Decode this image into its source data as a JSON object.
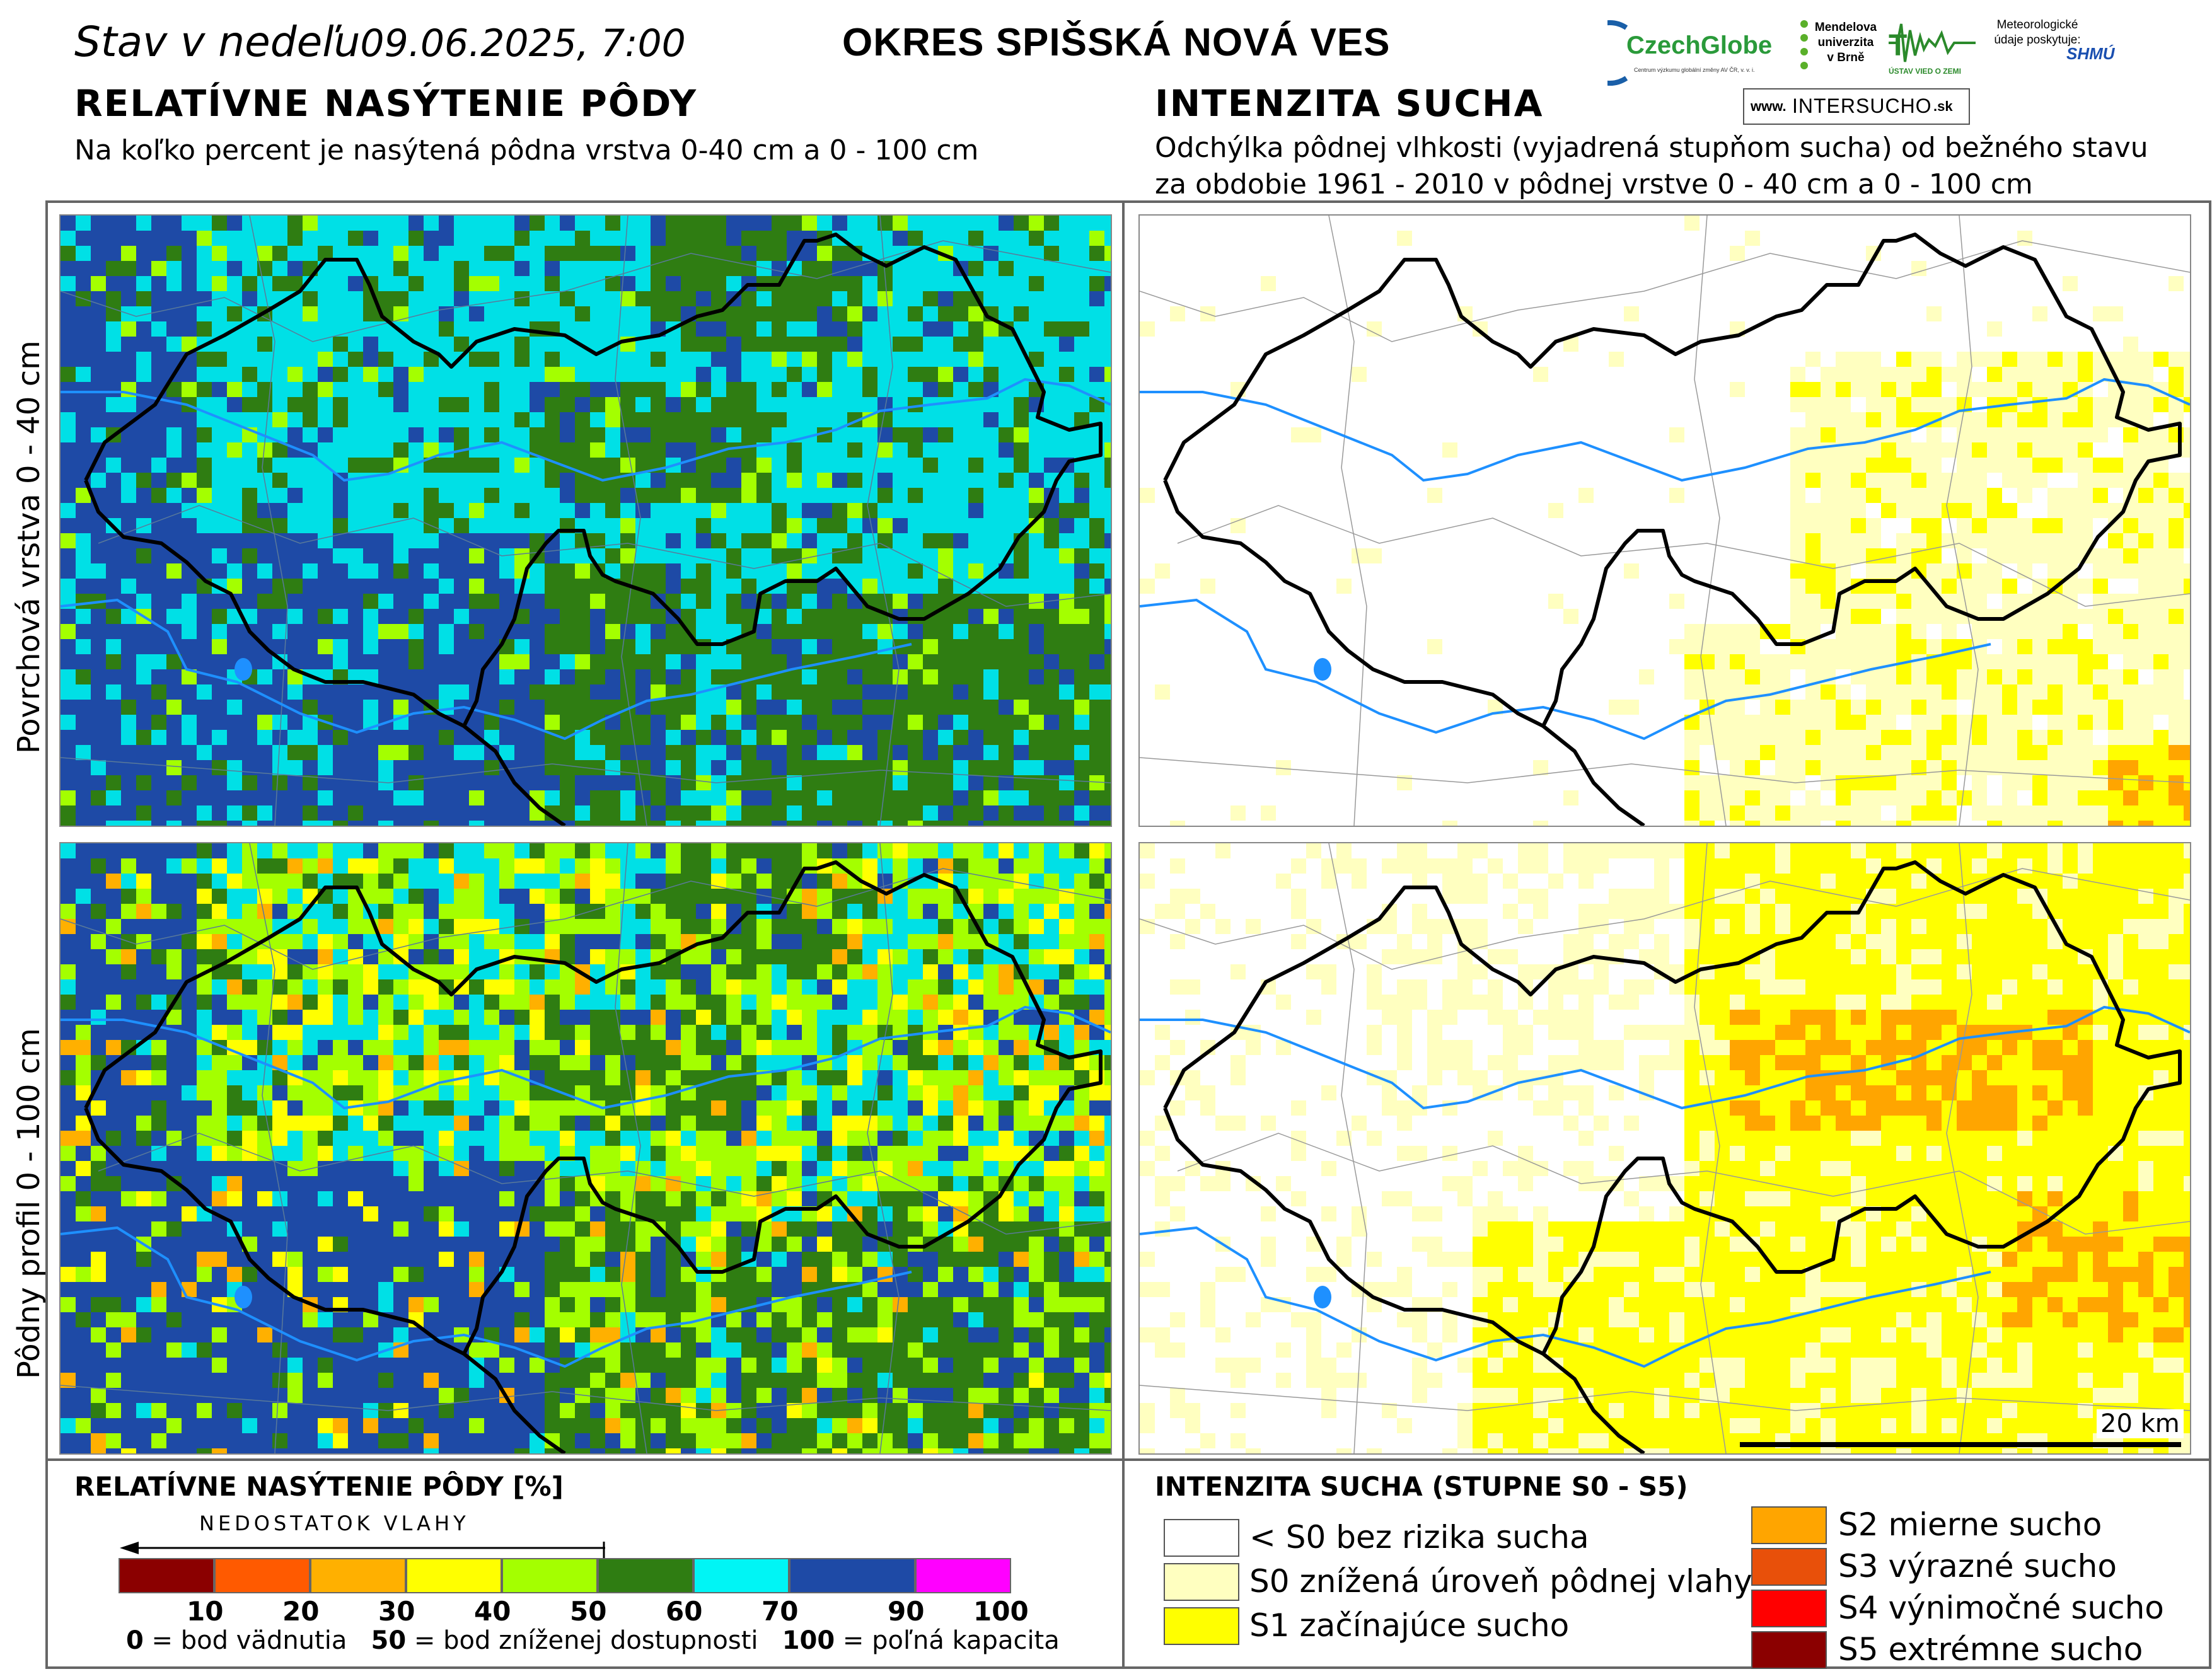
{
  "header": {
    "date_label": "Stav  v  nedeľu",
    "date_value": "09.06.2025, 7:00",
    "district": "OKRES  SPIŠSKÁ NOVÁ VES"
  },
  "logos": {
    "czechglobe": "CzechGlobe",
    "czechglobe_sub": "Centrum výzkumu globální změny AV ČR, v. v. i.",
    "mendel": "Mendelova univerzita v Brně",
    "uvz": "ÚSTAV VIED O ZEMI",
    "meteo": "Meteorologické údaje poskytuje:",
    "shmu": "SHMÚ",
    "intersucho_prefix": "www.",
    "intersucho": "INTERSUCHO",
    "intersucho_suffix": ".sk"
  },
  "left_section": {
    "title": "RELATÍVNE NASÝTENIE PÔDY",
    "subtitle": "Na koľko percent je nasýtená pôdna vrstva 0-40 cm a 0 - 100 cm"
  },
  "right_section": {
    "title": "INTENZITA SUCHA",
    "subtitle_1": "Odchýlka pôdnej vlhkosti (vyjadrená stupňom sucha) od bežného stavu",
    "subtitle_2": "za obdobie 1961 - 2010 v pôdnej vrstve 0 - 40 cm a 0 - 100 cm"
  },
  "row_labels": {
    "top": "Povrchová vrstva 0 - 40 cm",
    "bottom": "Pôdny profil 0 - 100 cm"
  },
  "scale_bar": "20 km",
  "saturation_legend": {
    "title": "RELATÍVNE NASÝTENIE PÔDY [%]",
    "arrow_label": "NEDOSTATOK VLAHY",
    "colors": [
      "#8b0000",
      "#ff5a00",
      "#ffb000",
      "#ffff00",
      "#a4ff00",
      "#2f7d12",
      "#00f5f5",
      "#1e4aa6",
      "#ff00ff"
    ],
    "ticks": [
      "10",
      "20",
      "30",
      "40",
      "50",
      "60",
      "70",
      "90",
      "100"
    ],
    "note_0": "0",
    "note_0_text": " = bod vädnutia",
    "note_50": "50",
    "note_50_text": " = bod zníženej dostupnosti",
    "note_100": "100",
    "note_100_text": " = poľná kapacita"
  },
  "drought_legend": {
    "title": "INTENZITA SUCHA (STUPNE S0 - S5)",
    "items_left": [
      {
        "label": "< S0 bez rizika sucha",
        "color": "#ffffff"
      },
      {
        "label": "S0 znížená úroveň pôdnej vlahy",
        "color": "#ffffc0"
      },
      {
        "label": "S1 začínajúce sucho",
        "color": "#ffff00"
      }
    ],
    "items_right": [
      {
        "label": "S2 mierne sucho",
        "color": "#ffa500"
      },
      {
        "label": "S3 výrazné sucho",
        "color": "#e8500a"
      },
      {
        "label": "S4 výnimočné sucho",
        "color": "#ff0000"
      },
      {
        "label": "S5 extrémne sucho",
        "color": "#8b0000"
      }
    ]
  },
  "map_colors": {
    "sat_dark_blue": "#1e4aa6",
    "sat_cyan": "#00e0e6",
    "sat_dark_green": "#2f7d12",
    "sat_light_green": "#a4ff00",
    "sat_yellow": "#ffff00",
    "sat_orange": "#ffb000",
    "river": "#1e90ff",
    "district_border": "#000000"
  }
}
